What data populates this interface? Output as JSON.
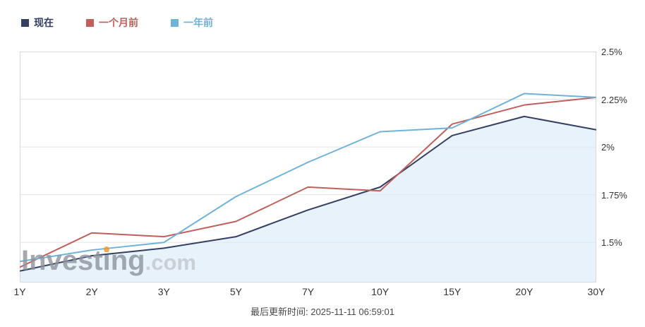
{
  "legend": {
    "items": [
      {
        "label": "现在",
        "color": "#333f63"
      },
      {
        "label": "一个月前",
        "color": "#c0605c"
      },
      {
        "label": "一年前",
        "color": "#6fb3d9"
      }
    ]
  },
  "watermark": {
    "pre": "Invest",
    "i": "i",
    "post": "ng",
    "suffix": ".com"
  },
  "footer": {
    "last_updated": "最后更新时间: 2025-11-11 06:59:01"
  },
  "chart_data": {
    "type": "line",
    "title": "",
    "categories": [
      "1Y",
      "2Y",
      "3Y",
      "5Y",
      "7Y",
      "10Y",
      "15Y",
      "20Y",
      "30Y"
    ],
    "series": [
      {
        "name": "现在",
        "color": "#333f63",
        "area": true,
        "values": [
          1.35,
          1.43,
          1.47,
          1.53,
          1.67,
          1.79,
          2.06,
          2.16,
          2.09
        ]
      },
      {
        "name": "一个月前",
        "color": "#c0605c",
        "area": false,
        "values": [
          1.37,
          1.55,
          1.53,
          1.61,
          1.79,
          1.77,
          2.12,
          2.22,
          2.26
        ]
      },
      {
        "name": "一年前",
        "color": "#6fb3d9",
        "area": false,
        "values": [
          1.4,
          1.46,
          1.5,
          1.74,
          1.92,
          2.08,
          2.1,
          2.28,
          2.26
        ]
      }
    ],
    "ylim": [
      1.29,
      2.5
    ],
    "yticks": [
      {
        "value": 1.5,
        "label": "1.5%"
      },
      {
        "value": 1.75,
        "label": "1.75%"
      },
      {
        "value": 2.0,
        "label": "2%"
      },
      {
        "value": 2.25,
        "label": "2.25%"
      },
      {
        "value": 2.5,
        "label": "2.5%"
      }
    ],
    "grid": true,
    "legend_position": "top-left",
    "colors": {
      "grid": "#e6e6e6",
      "border": "#d9d9d9",
      "area": "#e7f2fa"
    }
  }
}
